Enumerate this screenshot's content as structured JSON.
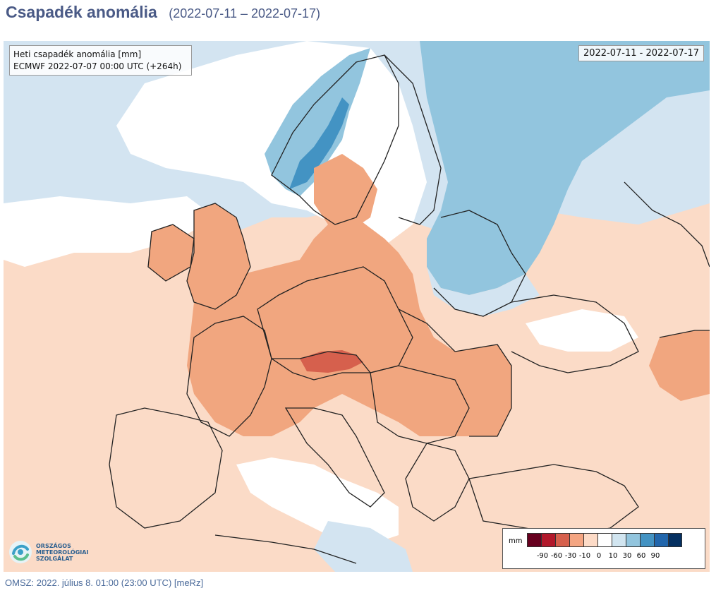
{
  "header": {
    "title": "Csapadék anomália",
    "date_range": "(2022-07-11 – 2022-07-17)"
  },
  "map": {
    "info_line1": "Heti csapadék anomália [mm]",
    "info_line2": "ECMWF 2022-07-07 00:00 UTC (+264h)",
    "period_label": "2022-07-11 - 2022-07-17"
  },
  "legend": {
    "unit": "mm",
    "colors": [
      "#67001f",
      "#b2182b",
      "#d6604d",
      "#f4a582",
      "#fddbc7",
      "#ffffff",
      "#d1e5f0",
      "#92c5de",
      "#4393c3",
      "#2166ac",
      "#053061"
    ],
    "ticks": [
      "-90",
      "-60",
      "-30",
      "-10",
      "0",
      "10",
      "30",
      "60",
      "90"
    ]
  },
  "logo": {
    "line1": "ORSZÁGOS",
    "line2": "METEOROLÓGIAI",
    "line3": "SZOLGÁLAT"
  },
  "footer": {
    "text": "OMSZ: 2022. július 8. 01:00 (23:00  UTC)  [meRz]"
  }
}
